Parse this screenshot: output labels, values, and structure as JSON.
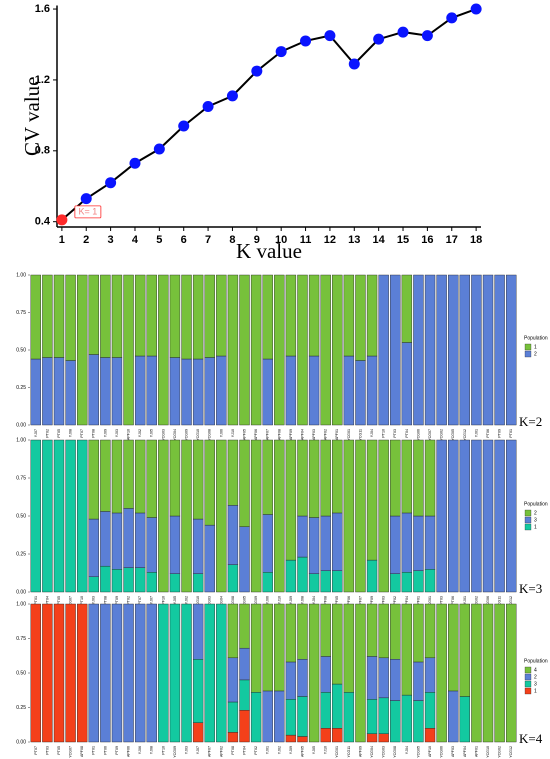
{
  "chart_data": [
    {
      "type": "line",
      "xlabel": "K value",
      "ylabel": "CV value",
      "x": [
        1,
        2,
        3,
        4,
        5,
        6,
        7,
        8,
        9,
        10,
        11,
        12,
        13,
        14,
        15,
        16,
        17,
        18
      ],
      "values": [
        0.41,
        0.53,
        0.62,
        0.73,
        0.81,
        0.94,
        1.05,
        1.11,
        1.25,
        1.36,
        1.42,
        1.45,
        1.29,
        1.43,
        1.47,
        1.45,
        1.55,
        1.6
      ],
      "line_color": "#000000",
      "point_colors": [
        "#ff2a2a",
        "#0a14ff",
        "#0a14ff",
        "#0a14ff",
        "#0a14ff",
        "#0a14ff",
        "#0a14ff",
        "#0a14ff",
        "#0a14ff",
        "#0a14ff",
        "#0a14ff",
        "#0a14ff",
        "#0a14ff",
        "#0a14ff",
        "#0a14ff",
        "#0a14ff",
        "#0a14ff",
        "#0a14ff"
      ],
      "annotation": "K= 1",
      "xlim": [
        0.8,
        18.2
      ],
      "xticks": [
        1,
        2,
        3,
        4,
        5,
        6,
        7,
        8,
        9,
        10,
        11,
        12,
        13,
        14,
        15,
        16,
        17,
        18
      ],
      "ylim": [
        0.37,
        1.62
      ],
      "yticks": [
        0.4,
        0.8,
        1.2,
        1.6
      ]
    },
    {
      "type": "bar",
      "stacked": true,
      "annotation": "K=2",
      "legend_title": "Population",
      "categories": [
        "YJ07",
        "PT02",
        "PT05",
        "YJ08",
        "PT07",
        "PT08",
        "YJ09",
        "YJ03",
        "APF10",
        "YJ02",
        "YJ05",
        "YCG03",
        "YCG04",
        "YCG09",
        "YCG10",
        "YCG08",
        "YJ06",
        "YJ10",
        "APF05",
        "APF06",
        "APF07",
        "APF08",
        "APF09",
        "APF04",
        "APF03",
        "APF02",
        "APF01",
        "YCG01",
        "YCG11",
        "YJ04",
        "PT10",
        "PT03",
        "PT04",
        "YCG06",
        "YCG07",
        "YCG02",
        "YCG05",
        "YCG12",
        "YJ01",
        "PT06",
        "PT09",
        "PT01"
      ],
      "series": [
        {
          "name": "1",
          "color": "#77c13b",
          "values": [
            0.56,
            0.55,
            0.55,
            0.57,
            1,
            0.53,
            0.55,
            0.55,
            1,
            0.54,
            0.54,
            1,
            0.55,
            0.56,
            0.56,
            0.55,
            0.54,
            1,
            1,
            1,
            0.56,
            1,
            0.54,
            1,
            0.54,
            1,
            1,
            0.54,
            0.57,
            0.54,
            0,
            0,
            0.45,
            0,
            0,
            0,
            0,
            0,
            0,
            0,
            0,
            0
          ]
        },
        {
          "name": "2",
          "color": "#5b7fd6",
          "values": [
            0.44,
            0.45,
            0.45,
            0.43,
            0,
            0.47,
            0.45,
            0.45,
            0,
            0.46,
            0.46,
            0,
            0.45,
            0.44,
            0.44,
            0.45,
            0.46,
            0,
            0,
            0,
            0.44,
            0,
            0.46,
            0,
            0.46,
            0,
            0,
            0.46,
            0.43,
            0.46,
            1,
            1,
            0.55,
            1,
            1,
            1,
            1,
            1,
            1,
            1,
            1,
            1
          ]
        }
      ],
      "ylim": [
        0,
        1
      ],
      "yticks": [
        {
          "value": 0,
          "label": "0.00"
        },
        {
          "value": 0.25,
          "label": "0.25"
        },
        {
          "value": 0.5,
          "label": "0.50"
        },
        {
          "value": 0.75,
          "label": "0.75"
        },
        {
          "value": 1,
          "label": "1.00"
        }
      ]
    },
    {
      "type": "bar",
      "stacked": true,
      "annotation": "K=3",
      "legend_title": "Population",
      "categories": [
        "PT01",
        "PT04",
        "PT05",
        "YCG07",
        "PT10",
        "YJ03",
        "PT08",
        "PT09",
        "PT02",
        "PT07",
        "YJ07",
        "APF10",
        "YJ05",
        "YJ02",
        "YCG10",
        "YCG03",
        "YCG04",
        "YCG08",
        "YCG05",
        "YCG09",
        "YJ06",
        "YJ10",
        "YJ09",
        "YJ08",
        "YJ04",
        "APF08",
        "APF05",
        "APF06",
        "APF07",
        "APF09",
        "APF03",
        "APF02",
        "APF04",
        "APF01",
        "YCG01",
        "PT03",
        "PT06",
        "YJ01",
        "YCG02",
        "YCG06",
        "YCG11",
        "YCG12"
      ],
      "series": [
        {
          "name": "2",
          "color": "#77c13b",
          "values": [
            0,
            0,
            0,
            0,
            0,
            0.52,
            0.47,
            0.48,
            0.45,
            0.48,
            0.51,
            1,
            0.5,
            1,
            0.52,
            0.56,
            1,
            0.43,
            0.57,
            1,
            0.49,
            1,
            0.79,
            0.5,
            0.51,
            0.5,
            0.48,
            1,
            1,
            0.79,
            1,
            0.5,
            0.48,
            0.5,
            0.5,
            0,
            0,
            0,
            0,
            0,
            0,
            0
          ]
        },
        {
          "name": "3",
          "color": "#5b7fd6",
          "values": [
            0,
            0,
            0,
            0,
            0,
            0.38,
            0.36,
            0.37,
            0.39,
            0.36,
            0.36,
            0,
            0.38,
            0,
            0.36,
            0.44,
            0,
            0.39,
            0.43,
            0,
            0.38,
            0,
            0,
            0.27,
            0.37,
            0.36,
            0.38,
            0,
            0,
            0,
            0,
            0.38,
            0.39,
            0.36,
            0.35,
            1,
            1,
            1,
            1,
            1,
            1,
            1
          ]
        },
        {
          "name": "1",
          "color": "#13c9a0",
          "values": [
            1,
            1,
            1,
            1,
            1,
            0.1,
            0.17,
            0.15,
            0.16,
            0.16,
            0.13,
            0,
            0.12,
            0,
            0.12,
            0,
            0,
            0.18,
            0,
            0,
            0.13,
            0,
            0.21,
            0.23,
            0.12,
            0.14,
            0.14,
            0,
            0,
            0.21,
            0,
            0.12,
            0.13,
            0.14,
            0.15,
            0,
            0,
            0,
            0,
            0,
            0,
            0
          ]
        }
      ],
      "ylim": [
        0,
        1
      ],
      "yticks": [
        {
          "value": 0,
          "label": "0.00"
        },
        {
          "value": 0.25,
          "label": "0.25"
        },
        {
          "value": 0.5,
          "label": "0.50"
        },
        {
          "value": 0.75,
          "label": "0.75"
        },
        {
          "value": 1,
          "label": "1.00"
        }
      ]
    },
    {
      "type": "bar",
      "stacked": true,
      "annotation": "K=4",
      "legend_title": "Population",
      "categories": [
        "PT07",
        "PT03",
        "PT05",
        "YCG07",
        "APF08",
        "PT01",
        "PT06",
        "PT09",
        "APF06",
        "YJ06",
        "YJ08",
        "PT10",
        "YCG09",
        "YJ03",
        "YJ07",
        "APF07",
        "APF02",
        "PT08",
        "PT04",
        "PT02",
        "YJ01",
        "YJ02",
        "YJ09",
        "APF05",
        "YJ05",
        "YJ10",
        "YCG01",
        "YCG11",
        "APF09",
        "YCG04",
        "YCG03",
        "YCG08",
        "YJ04",
        "YCG05",
        "APF10",
        "YCG06",
        "APF03",
        "APF04",
        "APF01",
        "YCG10",
        "YCG02",
        "YCG12"
      ],
      "series": [
        {
          "name": "4",
          "color": "#77c13b",
          "values": [
            0,
            0,
            0,
            0,
            0,
            0,
            0,
            0,
            0,
            0,
            0,
            0,
            0,
            0,
            0,
            0,
            0,
            0.39,
            0.32,
            0.64,
            0.63,
            0.63,
            0.42,
            0.4,
            1,
            0.38,
            0.58,
            0.64,
            1,
            0.38,
            0.39,
            0.4,
            0.66,
            0.42,
            0.39,
            1,
            0.63,
            0.67,
            1,
            1,
            1,
            1
          ]
        },
        {
          "name": "2",
          "color": "#5b7fd6",
          "values": [
            0,
            0,
            0,
            0,
            0,
            1,
            1,
            1,
            1,
            1,
            1,
            0,
            0,
            0,
            0.4,
            0,
            0,
            0.32,
            0.23,
            0,
            0.37,
            0.37,
            0.27,
            0.27,
            0,
            0.26,
            0,
            0,
            0,
            0.31,
            0.29,
            0.3,
            0,
            0.28,
            0.25,
            0,
            0.37,
            0,
            0,
            0,
            0,
            0
          ]
        },
        {
          "name": "3",
          "color": "#13c9a0",
          "values": [
            0,
            0,
            0,
            0,
            0,
            0,
            0,
            0,
            0,
            0,
            0,
            1,
            1,
            1,
            0.46,
            1,
            1,
            0.22,
            0.22,
            0.36,
            0,
            0,
            0.26,
            0.29,
            0,
            0.26,
            0.32,
            0.36,
            0,
            0.25,
            0.26,
            0.3,
            0.34,
            0.3,
            0.26,
            0,
            0,
            0.33,
            0,
            0,
            0,
            0
          ]
        },
        {
          "name": "1",
          "color": "#f4401a",
          "values": [
            1,
            1,
            1,
            1,
            1,
            0,
            0,
            0,
            0,
            0,
            0,
            0,
            0,
            0,
            0.14,
            0,
            0,
            0.07,
            0.23,
            0,
            0,
            0,
            0.05,
            0.04,
            0,
            0.1,
            0.1,
            0,
            0,
            0.06,
            0.06,
            0,
            0,
            0,
            0.1,
            0,
            0,
            0,
            0,
            0,
            0,
            0
          ]
        }
      ],
      "ylim": [
        0,
        1
      ],
      "yticks": [
        {
          "value": 0,
          "label": "0.00"
        },
        {
          "value": 0.25,
          "label": "0.25"
        },
        {
          "value": 0.5,
          "label": "0.50"
        },
        {
          "value": 0.75,
          "label": "0.75"
        },
        {
          "value": 1,
          "label": "1.00"
        }
      ]
    }
  ]
}
